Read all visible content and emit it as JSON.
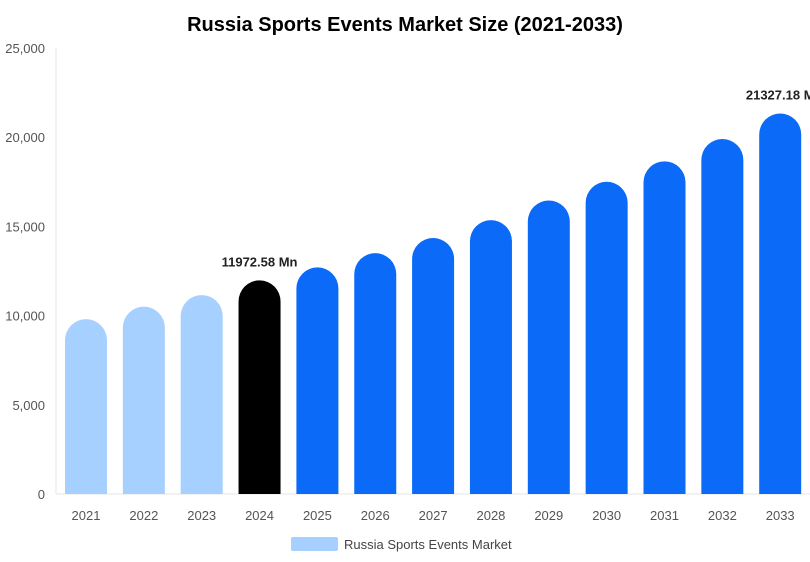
{
  "chart_data": {
    "type": "bar",
    "title": "Russia Sports Events Market Size (2021-2033)",
    "xlabel": "",
    "ylabel": "",
    "ylim": [
      0,
      25000
    ],
    "yticks": [
      "0",
      "5,000",
      "10,000",
      "15,000",
      "20,000",
      "25,000"
    ],
    "categories": [
      "2021",
      "2022",
      "2023",
      "2024",
      "2025",
      "2026",
      "2027",
      "2028",
      "2029",
      "2030",
      "2031",
      "2032",
      "2033"
    ],
    "series": [
      {
        "name": "Russia Sports Events Market",
        "values": [
          9800,
          10500,
          11150,
          11972.58,
          12700,
          13500,
          14350,
          15350,
          16450,
          17500,
          18650,
          19900,
          21327.18
        ],
        "colors": [
          "#a6d0ff",
          "#a6d0ff",
          "#a6d0ff",
          "#000000",
          "#0b6af7",
          "#0b6af7",
          "#0b6af7",
          "#0b6af7",
          "#0b6af7",
          "#0b6af7",
          "#0b6af7",
          "#0b6af7",
          "#0b6af7"
        ]
      }
    ],
    "data_labels": [
      {
        "index": 3,
        "text": "11972.58 Mn"
      },
      {
        "index": 12,
        "text": "21327.18 M"
      }
    ],
    "legend": {
      "position": "bottom",
      "label": "Russia Sports Events Market",
      "color": "#a6d0ff"
    },
    "grid": false
  }
}
